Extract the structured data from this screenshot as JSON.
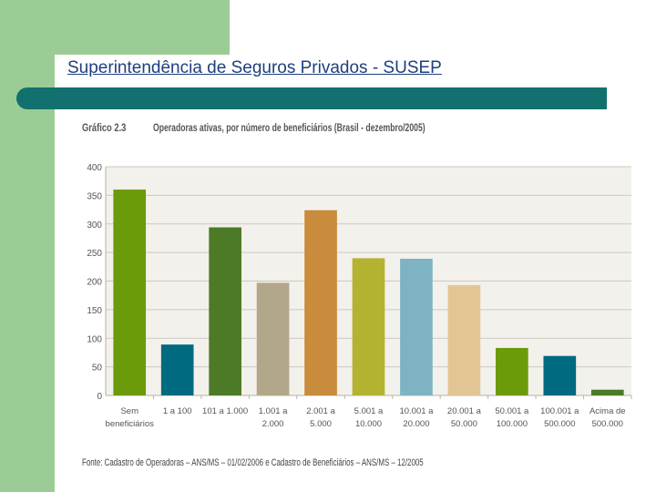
{
  "slide": {
    "title": "Superintendência de Seguros Privados - SUSEP"
  },
  "chart_data": {
    "type": "bar",
    "number": "Gráfico 2.3",
    "title": "Operadoras ativas, por número de beneficiários (Brasil - dezembro/2005)",
    "categories": [
      [
        "Sem",
        "beneficiários"
      ],
      [
        "1 a 100"
      ],
      [
        "101 a 1.000"
      ],
      [
        "1.001 a",
        "2.000"
      ],
      [
        "2.001 a",
        "5.000"
      ],
      [
        "5.001 a",
        "10.000"
      ],
      [
        "10.001 a",
        "20.000"
      ],
      [
        "20.001 a",
        "50.000"
      ],
      [
        "50.001 a",
        "100.000"
      ],
      [
        "100.001 a",
        "500.000"
      ],
      [
        "Acima de",
        "500.000"
      ]
    ],
    "values": [
      360,
      89,
      294,
      197,
      324,
      240,
      239,
      193,
      83,
      69,
      10
    ],
    "colors": [
      "#6b9a0a",
      "#006a80",
      "#4d7a27",
      "#b3a789",
      "#c98b3c",
      "#b4b331",
      "#7db3c3",
      "#e3c594",
      "#6b9a0a",
      "#006a80",
      "#4d7a27"
    ],
    "ylim": [
      0,
      400
    ],
    "yticks": [
      0,
      50,
      100,
      150,
      200,
      250,
      300,
      350,
      400
    ],
    "grid": true,
    "xlabel": "",
    "ylabel": "",
    "source": "Fonte: Cadastro de Operadoras – ANS/MS – 01/02/2006 e Cadastro de Beneficiários – ANS/MS – 12/2005"
  }
}
